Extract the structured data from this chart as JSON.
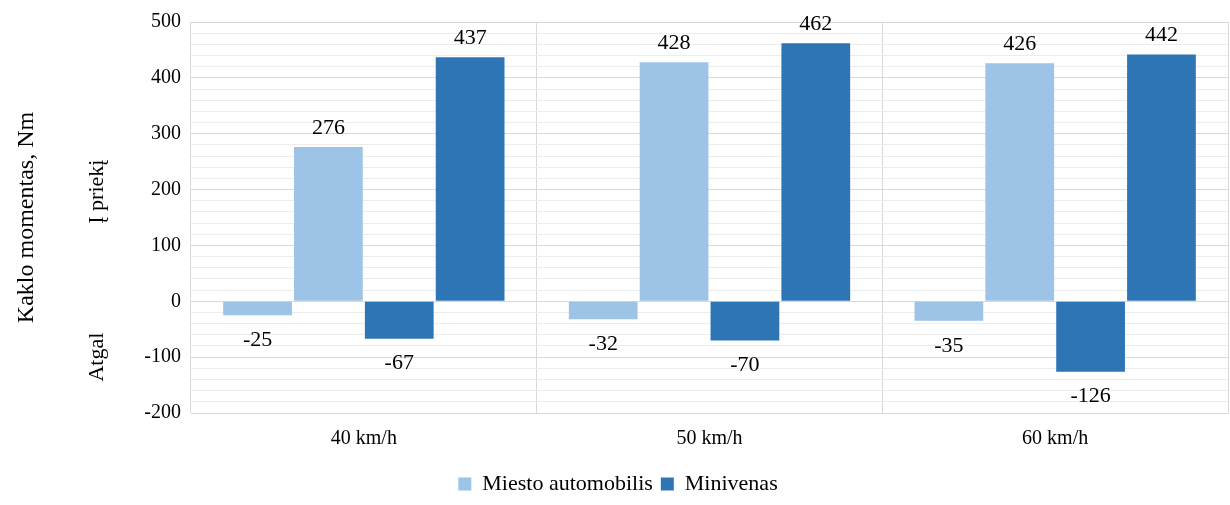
{
  "chart_data": {
    "type": "bar",
    "ylabel": "Kaklo momentas, Nm",
    "categories": [
      "40 km/h",
      "50 km/h",
      "60 km/h"
    ],
    "series": [
      {
        "color": "#9dc3e6",
        "values": [
          -25,
          -32,
          -35
        ]
      },
      {
        "name": "Miesto automobilis",
        "color": "#9dc3e6",
        "values": [
          276,
          428,
          426
        ]
      },
      {
        "color": "#2e75b6",
        "values": [
          -67,
          -70,
          -126
        ]
      },
      {
        "name": "Minivenas",
        "color": "#2e75b6",
        "values": [
          437,
          462,
          442
        ]
      }
    ],
    "ylim": [
      -200,
      500
    ],
    "yticks": [
      -200,
      {
        "value": -180,
        "label": null
      },
      {
        "value": -160,
        "label": null
      },
      {
        "value": -140,
        "label": null
      },
      {
        "value": -120,
        "label": null
      },
      -100,
      {
        "value": -80,
        "label": null
      },
      {
        "value": -60,
        "label": null
      },
      {
        "value": -40,
        "label": null
      },
      {
        "value": -20,
        "label": null
      },
      0,
      {
        "value": 20,
        "label": null
      },
      {
        "value": 40,
        "label": null
      },
      {
        "value": 60,
        "label": null
      },
      {
        "value": 80,
        "label": null
      },
      100,
      {
        "value": 120,
        "label": null
      },
      {
        "value": 140,
        "label": null
      },
      {
        "value": 160,
        "label": null
      },
      {
        "value": 180,
        "label": null
      },
      200,
      {
        "value": 220,
        "label": null
      },
      {
        "value": 240,
        "label": null
      },
      {
        "value": 260,
        "label": null
      },
      {
        "value": 280,
        "label": null
      },
      300,
      {
        "value": 320,
        "label": null
      },
      {
        "value": 340,
        "label": null
      },
      {
        "value": 360,
        "label": null
      },
      {
        "value": 380,
        "label": null
      },
      400,
      {
        "value": 420,
        "label": null
      },
      {
        "value": 440,
        "label": null
      },
      {
        "value": 460,
        "label": null
      },
      {
        "value": 480,
        "label": null
      },
      500
    ],
    "annotations": [
      "Į priekį",
      "Atgal"
    ],
    "grid": true,
    "legend": "bottom",
    "data_labels": true
  }
}
